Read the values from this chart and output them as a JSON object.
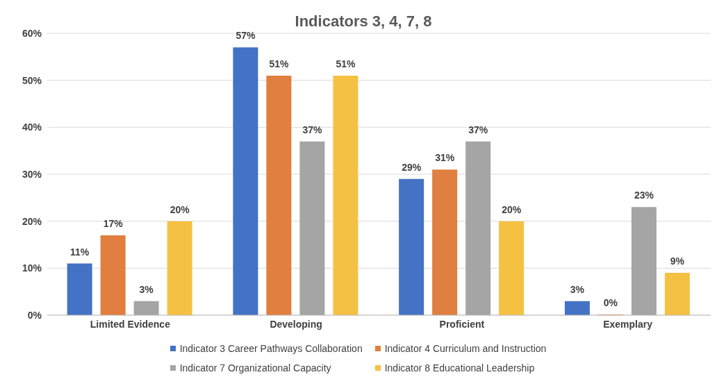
{
  "chart_data": {
    "type": "bar",
    "title": "Indicators 3, 4, 7, 8",
    "categories": [
      "Limited Evidence",
      "Developing",
      "Proficient",
      "Exemplary"
    ],
    "series": [
      {
        "name": "Indicator 3 Career Pathways Collaboration",
        "color": "#4472c4",
        "values": [
          11,
          57,
          29,
          3
        ],
        "value_labels": [
          "11%",
          "57%",
          "29%",
          "3%"
        ]
      },
      {
        "name": "Indicator 4 Curriculum and Instruction",
        "color": "#e07f3f",
        "values": [
          17,
          51,
          31,
          0
        ],
        "value_labels": [
          "17%",
          "51%",
          "31%",
          "0%"
        ]
      },
      {
        "name": "Indicator 7 Organizational Capacity",
        "color": "#a5a5a5",
        "values": [
          3,
          37,
          37,
          23
        ],
        "value_labels": [
          "3%",
          "37%",
          "37%",
          "23%"
        ]
      },
      {
        "name": "Indicator 8 Educational Leadership",
        "color": "#f5c142",
        "values": [
          20,
          51,
          20,
          9
        ],
        "value_labels": [
          "20%",
          "51%",
          "20%",
          "9%"
        ]
      }
    ],
    "ylim": [
      0,
      60
    ],
    "yticks": [
      {
        "value": 0,
        "label": "0%"
      },
      {
        "value": 10,
        "label": "10%"
      },
      {
        "value": 20,
        "label": "20%"
      },
      {
        "value": 30,
        "label": "30%"
      },
      {
        "value": 40,
        "label": "40%"
      },
      {
        "value": 50,
        "label": "50%"
      },
      {
        "value": 60,
        "label": "60%"
      }
    ],
    "grid": "y",
    "legend": "bottom"
  }
}
